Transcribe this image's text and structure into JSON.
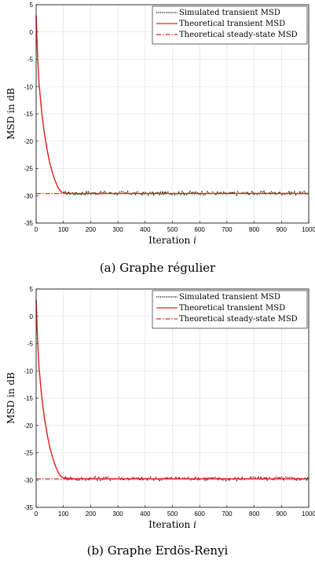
{
  "chart_data": [
    {
      "type": "line",
      "caption": "(a) Graphe régulier",
      "xlabel": "Iteration",
      "xlabel_var": "i",
      "ylabel": "MSD in dB",
      "xlim": [
        0,
        1000
      ],
      "ylim": [
        -35,
        5
      ],
      "xticks": [
        0,
        100,
        200,
        300,
        400,
        500,
        600,
        700,
        800,
        900,
        1000
      ],
      "yticks": [
        5,
        0,
        -5,
        -10,
        -15,
        -20,
        -25,
        -30,
        -35
      ],
      "grid": true,
      "legend_position": "top-right",
      "series": [
        {
          "name": "Simulated transient MSD",
          "color": "#000000",
          "style": "dotted",
          "x": [
            0,
            5,
            10,
            20,
            30,
            40,
            50,
            60,
            70,
            80,
            90,
            100,
            150,
            200,
            300,
            400,
            500,
            600,
            700,
            800,
            900,
            1000
          ],
          "y": [
            3,
            -4,
            -9,
            -14.5,
            -18.5,
            -21.5,
            -24,
            -25.8,
            -27.3,
            -28.5,
            -29.2,
            -29.5,
            -29.6,
            -29.5,
            -29.5,
            -29.6,
            -29.5,
            -29.5,
            -29.6,
            -29.5,
            -29.5,
            -29.5
          ]
        },
        {
          "name": "Theoretical transient MSD",
          "color": "#e8241c",
          "style": "solid",
          "x": [
            0,
            5,
            10,
            20,
            30,
            40,
            50,
            60,
            70,
            80,
            90,
            100,
            150,
            200,
            300,
            400,
            500,
            600,
            700,
            800,
            900,
            1000
          ],
          "y": [
            3,
            -4,
            -9,
            -14.5,
            -18.5,
            -21.5,
            -24,
            -25.8,
            -27.3,
            -28.5,
            -29.2,
            -29.5,
            -29.6,
            -29.6,
            -29.6,
            -29.6,
            -29.6,
            -29.6,
            -29.6,
            -29.6,
            -29.6,
            -29.6
          ]
        },
        {
          "name": "Theoretical steady-state MSD",
          "color": "#e8241c",
          "style": "dashdot",
          "x": [
            0,
            1000
          ],
          "y": [
            -29.6,
            -29.6
          ]
        }
      ]
    },
    {
      "type": "line",
      "caption": "(b) Graphe Erdös-Renyi",
      "xlabel": "Iteration",
      "xlabel_var": "i",
      "ylabel": "MSD in dB",
      "xlim": [
        0,
        1000
      ],
      "ylim": [
        -35,
        5
      ],
      "xticks": [
        0,
        100,
        200,
        300,
        400,
        500,
        600,
        700,
        800,
        900,
        1000
      ],
      "yticks": [
        5,
        0,
        -5,
        -10,
        -15,
        -20,
        -25,
        -30,
        -35
      ],
      "grid": true,
      "legend_position": "top-right",
      "series": [
        {
          "name": "Simulated transient MSD",
          "color": "#000000",
          "style": "dotted",
          "x": [
            0,
            5,
            10,
            20,
            30,
            40,
            50,
            60,
            70,
            80,
            90,
            100,
            150,
            200,
            300,
            400,
            500,
            600,
            700,
            800,
            900,
            1000
          ],
          "y": [
            3,
            -4,
            -9,
            -14.5,
            -18.5,
            -21.5,
            -24,
            -25.8,
            -27.3,
            -28.5,
            -29.3,
            -29.6,
            -29.8,
            -29.7,
            -29.7,
            -29.8,
            -29.7,
            -29.7,
            -29.8,
            -29.7,
            -29.7,
            -29.8
          ]
        },
        {
          "name": "Theoretical transient MSD",
          "color": "#e8241c",
          "style": "solid",
          "x": [
            0,
            5,
            10,
            20,
            30,
            40,
            50,
            60,
            70,
            80,
            90,
            100,
            150,
            200,
            300,
            400,
            500,
            600,
            700,
            800,
            900,
            1000
          ],
          "y": [
            3,
            -4,
            -9,
            -14.5,
            -18.5,
            -21.5,
            -24,
            -25.8,
            -27.3,
            -28.5,
            -29.3,
            -29.6,
            -29.8,
            -29.8,
            -29.8,
            -29.8,
            -29.8,
            -29.8,
            -29.8,
            -29.8,
            -29.8,
            -29.8
          ]
        },
        {
          "name": "Theoretical steady-state MSD",
          "color": "#e8241c",
          "style": "dashdot",
          "x": [
            0,
            1000
          ],
          "y": [
            -29.8,
            -29.8
          ]
        }
      ]
    }
  ]
}
